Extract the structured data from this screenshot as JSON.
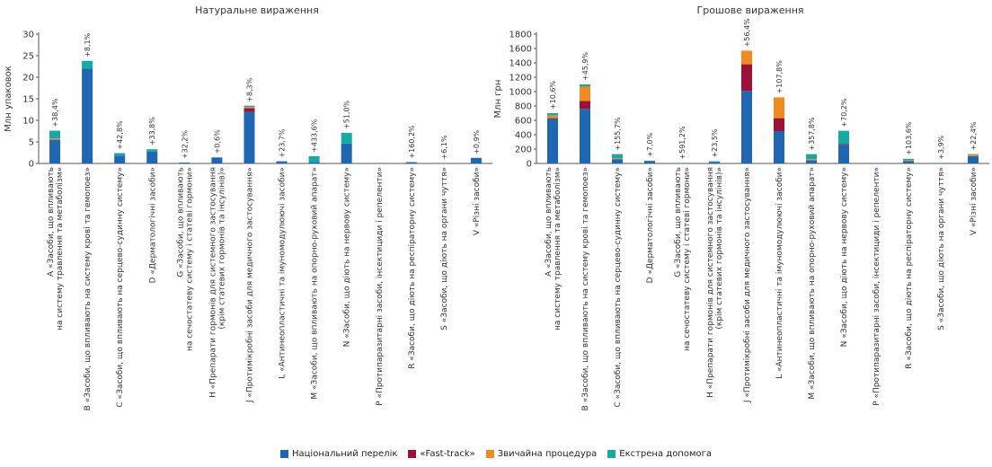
{
  "legend": [
    {
      "name": "Національний перелік",
      "color": "#1f66b3"
    },
    {
      "name": "«Fast-track»",
      "color": "#9e1035"
    },
    {
      "name": "Звичайна процедура",
      "color": "#f28a22"
    },
    {
      "name": "Екстрена допомога",
      "color": "#16aaa5"
    }
  ],
  "chart_data": [
    {
      "type": "bar",
      "stacked": true,
      "title": "Натуральне вираження",
      "ylabel": "Млн упаковок",
      "ylim": [
        0,
        30
      ],
      "yticks": [
        0,
        5,
        10,
        15,
        20,
        25,
        30
      ],
      "categories": [
        [
          "A «Засоби, що впливають",
          "на систему травлення та метаболізм»"
        ],
        [
          "B «Засоби, що впливають на систему крові та гемопоез»"
        ],
        [
          "C «Засоби, що впливають на серцево-судинну систему»"
        ],
        [
          "D «Дерматологічні засоби»"
        ],
        [
          "G «Засоби, що впливають",
          "на сечостатеву систему і статеві гормони»"
        ],
        [
          "H «Препарати гормонів для системного застосування",
          "(крім статевих гормонів та інсулінів)»"
        ],
        [
          "J «Протимікробні засоби для медичного застосування»"
        ],
        [
          "L «Антинеопластичні та імуномодулюючі засоби»"
        ],
        [
          "M «Засоби, що впливають на опорно-руховий апарат»"
        ],
        [
          "N «Засоби, що діють на нервову систему»"
        ],
        [
          "P «Протипаразитарні засоби, інсектициди і репеленти»"
        ],
        [
          "R «Засоби, що діють на респіраторну систему»"
        ],
        [
          "S «Засоби, що діють на органи чуття»"
        ],
        [
          "V «Різні засоби»"
        ]
      ],
      "annotations": [
        "+38,4%",
        "+8,1%",
        "+42,8%",
        "+33,8%",
        "+32,2%",
        "+0,6%",
        "+8,3%",
        "+23,7%",
        "+433,6%",
        "+51,0%",
        "",
        "+160,2%",
        "+6,1%",
        "+0,9%"
      ],
      "series": [
        {
          "name": "Національний перелік",
          "values": [
            5.5,
            22.0,
            1.8,
            2.7,
            0.2,
            1.4,
            12.0,
            0.5,
            0.3,
            4.6,
            0.1,
            0.3,
            0.1,
            1.3
          ]
        },
        {
          "name": "«Fast-track»",
          "values": [
            0,
            0,
            0,
            0,
            0,
            0,
            0.8,
            0,
            0,
            0,
            0,
            0,
            0,
            0
          ]
        },
        {
          "name": "Звичайна процедура",
          "values": [
            0.3,
            0,
            0,
            0,
            0,
            0,
            0.3,
            0,
            0,
            0,
            0,
            0,
            0,
            0
          ]
        },
        {
          "name": "Екстрена допомога",
          "values": [
            1.8,
            1.8,
            0.6,
            0.6,
            0,
            0,
            0.3,
            0,
            1.4,
            2.5,
            0,
            0,
            0,
            0
          ]
        }
      ]
    },
    {
      "type": "bar",
      "stacked": true,
      "title": "Грошове вираження",
      "ylabel": "Млн грн",
      "ylim": [
        0,
        1800
      ],
      "yticks": [
        0,
        200,
        400,
        600,
        800,
        1000,
        1200,
        1400,
        1600,
        1800
      ],
      "categories": [
        [
          "A «Засоби, що впливають",
          "на систему травлення та метаболізм»"
        ],
        [
          "B «Засоби, що впливають на систему крові та гемопоез»"
        ],
        [
          "C «Засоби, що впливають на серцево-судинну систему»"
        ],
        [
          "D «Дерматологічні засоби»"
        ],
        [
          "G «Засоби, що впливають",
          "на сечостатеву систему і статеві гормони»"
        ],
        [
          "H «Препарати гормонів для системного застосування",
          "(крім статевих гормонів та інсулінів)»"
        ],
        [
          "J «Протимікробні засоби для медичного застосування»"
        ],
        [
          "L «Антинеопластичні та імуномодулюючі засоби»"
        ],
        [
          "M «Засоби, що впливають на опорно-руховий апарат»"
        ],
        [
          "N «Засоби, що діють на нервову систему»"
        ],
        [
          "P «Протипаразитарні засоби, інсектициди і репеленти»"
        ],
        [
          "R «Засоби, що діють на респіраторну систему»"
        ],
        [
          "S «Засоби, що діють на органи чуття»"
        ],
        [
          "V «Різні засоби»"
        ]
      ],
      "annotations": [
        "+10,6%",
        "+45,9%",
        "+155,7%",
        "+7,0%",
        "+591,2%",
        "+23,5%",
        "+56,4%",
        "+107,8%",
        "+357,8%",
        "+70,2%",
        "",
        "+103,6%",
        "+3,9%",
        "+22,4%"
      ],
      "series": [
        {
          "name": "Національний перелік",
          "values": [
            620,
            760,
            60,
            35,
            5,
            20,
            1010,
            450,
            45,
            260,
            2,
            30,
            3,
            100
          ]
        },
        {
          "name": "«Fast-track»",
          "values": [
            10,
            110,
            0,
            0,
            0,
            0,
            370,
            180,
            0,
            10,
            0,
            5,
            0,
            0
          ]
        },
        {
          "name": "Звичайна процедура",
          "values": [
            40,
            200,
            10,
            5,
            0,
            0,
            190,
            290,
            15,
            0,
            0,
            10,
            0,
            20
          ]
        },
        {
          "name": "Екстрена допомога",
          "values": [
            30,
            30,
            60,
            0,
            0,
            10,
            0,
            0,
            70,
            185,
            0,
            20,
            0,
            10
          ]
        }
      ]
    }
  ]
}
